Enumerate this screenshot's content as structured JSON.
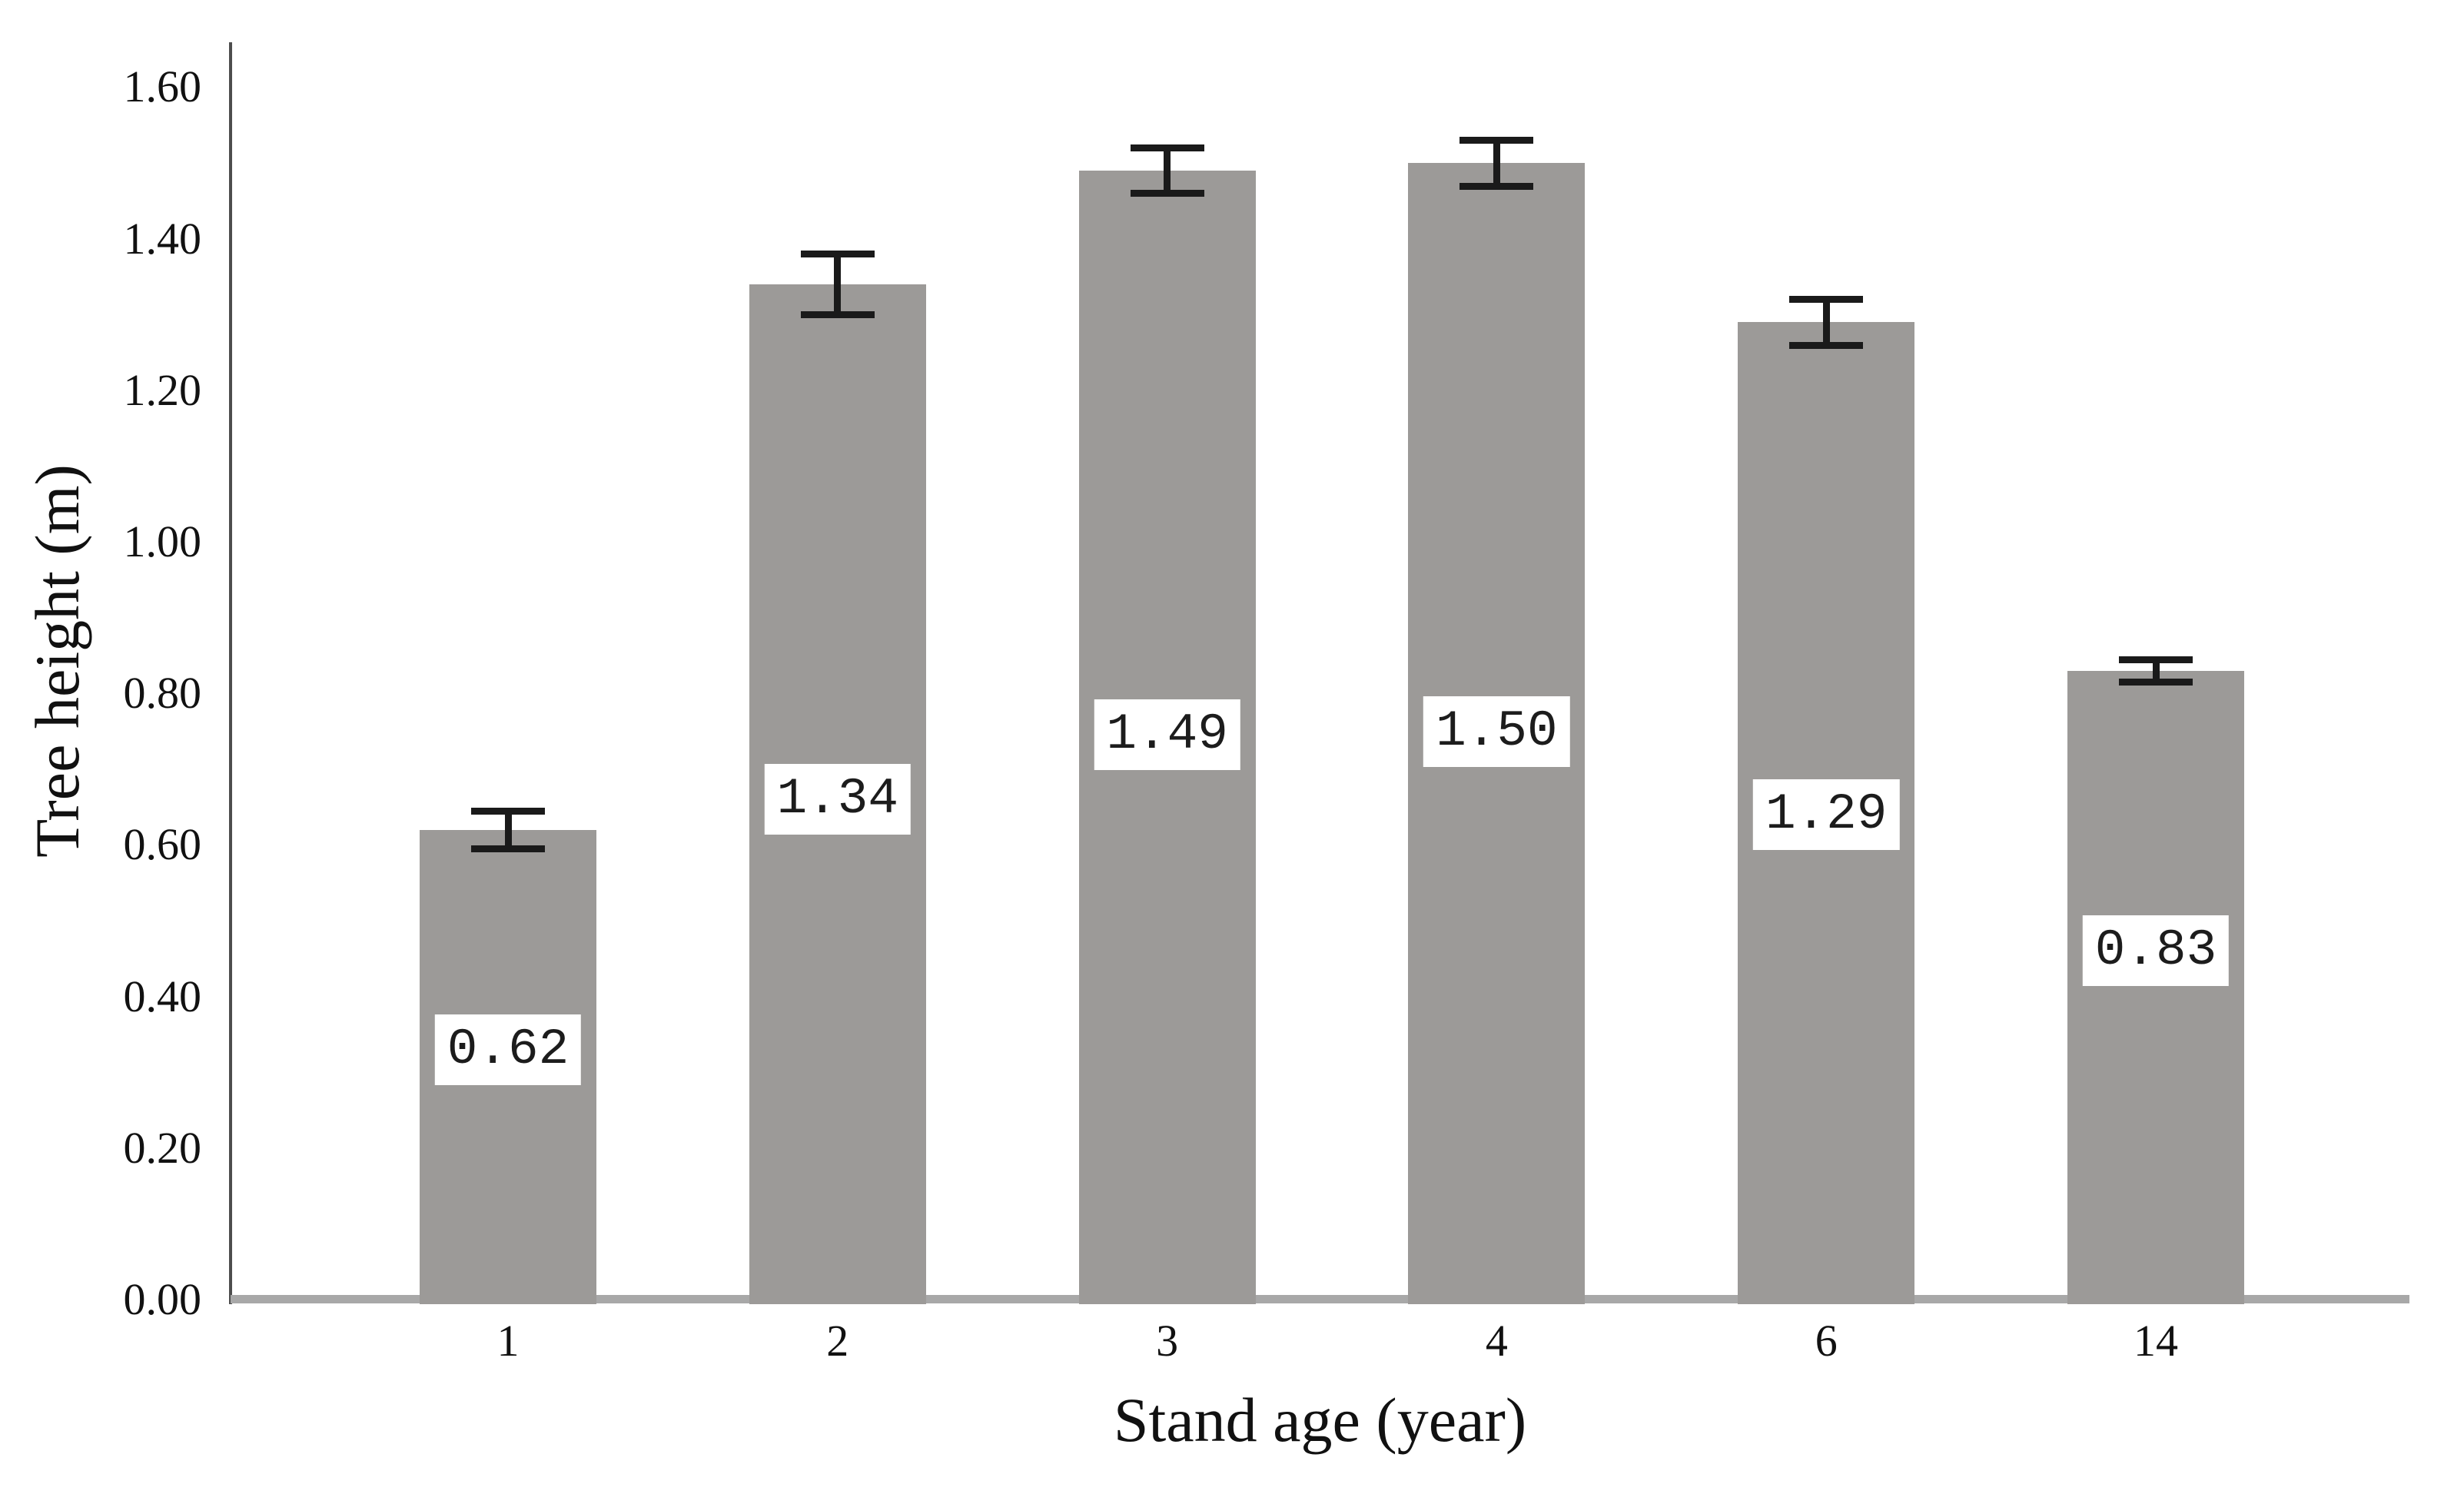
{
  "figure": {
    "background": "#ffffff"
  },
  "chart_data": {
    "type": "bar",
    "title": "",
    "xlabel": "Stand age (year)",
    "ylabel": "Tree height (m)",
    "categories": [
      "1",
      "2",
      "3",
      "4",
      "6",
      "14"
    ],
    "values": [
      0.62,
      1.34,
      1.49,
      1.5,
      1.29,
      0.83
    ],
    "value_labels": [
      "0.62",
      "1.34",
      "1.49",
      "1.50",
      "1.29",
      "0.83"
    ],
    "errors": [
      0.025,
      0.04,
      0.03,
      0.03,
      0.03,
      0.015
    ],
    "label_center_y": [
      0.33,
      0.66,
      0.745,
      0.75,
      0.64,
      0.46
    ],
    "ylim": [
      0,
      1.66
    ],
    "yticks": [
      0,
      0.2,
      0.4,
      0.6,
      0.8,
      1.0,
      1.2,
      1.4,
      1.6
    ],
    "ytick_labels": [
      "0.00",
      "0.20",
      "0.40",
      "0.60",
      "0.80",
      "1.00",
      "1.20",
      "1.40",
      "1.60"
    ],
    "grid": false,
    "legend": null,
    "bar_color": "#9c9a98",
    "baseline_color": "#a8a8a8",
    "y_axis_color": "#4d4d4d",
    "error_bar_color": "#1a1a1a",
    "text_color": "#111111",
    "label_box_bg": "#ffffff",
    "label_text_color": "#1c1c1c"
  }
}
